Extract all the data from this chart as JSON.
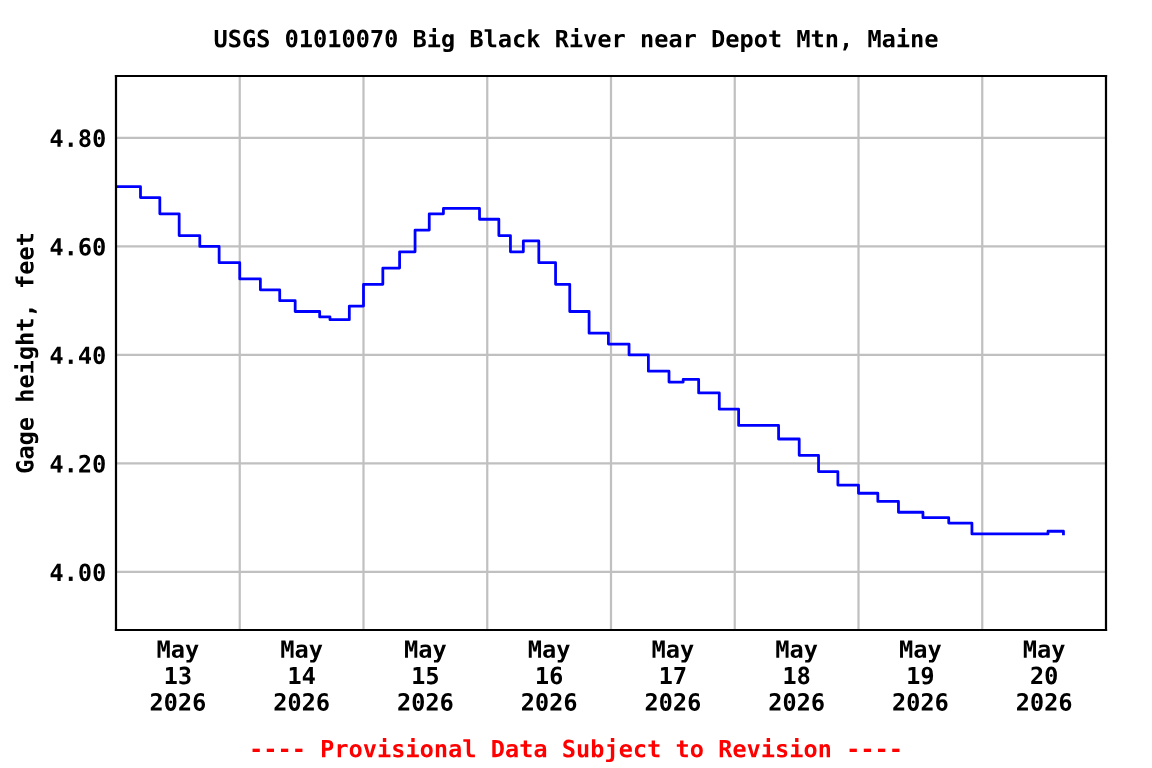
{
  "chart_data": {
    "type": "step",
    "title": "USGS 01010070 Big Black River near Depot Mtn, Maine",
    "ylabel": "Gage height, feet",
    "x": [
      "2026-05-12T12:00",
      "2026-05-12T16:45",
      "2026-05-12T20:30",
      "2026-05-13T00:15",
      "2026-05-13T04:15",
      "2026-05-13T08:00",
      "2026-05-13T12:00",
      "2026-05-13T16:00",
      "2026-05-13T19:45",
      "2026-05-13T22:45",
      "2026-05-14T03:30",
      "2026-05-14T05:30",
      "2026-05-14T09:15",
      "2026-05-14T12:00",
      "2026-05-14T15:45",
      "2026-05-14T19:00",
      "2026-05-14T22:00",
      "2026-05-15T00:45",
      "2026-05-15T03:30",
      "2026-05-15T06:30",
      "2026-05-15T10:30",
      "2026-05-15T14:15",
      "2026-05-15T16:30",
      "2026-05-15T19:00",
      "2026-05-15T22:00",
      "2026-05-16T01:15",
      "2026-05-16T04:00",
      "2026-05-16T07:45",
      "2026-05-16T11:30",
      "2026-05-16T15:30",
      "2026-05-16T19:15",
      "2026-05-16T23:15",
      "2026-05-17T02:00",
      "2026-05-17T05:00",
      "2026-05-17T09:00",
      "2026-05-17T12:45",
      "2026-05-17T17:30",
      "2026-05-17T20:30",
      "2026-05-18T00:30",
      "2026-05-18T04:15",
      "2026-05-18T08:00",
      "2026-05-18T12:00",
      "2026-05-18T15:45",
      "2026-05-18T19:45",
      "2026-05-19T00:30",
      "2026-05-19T05:30",
      "2026-05-19T10:00",
      "2026-05-19T15:00",
      "2026-05-19T21:00",
      "2026-05-20T00:45",
      "2026-05-20T03:45"
    ],
    "series": [
      {
        "color": "#0000ff",
        "values": [
          4.71,
          4.69,
          4.66,
          4.62,
          4.6,
          4.57,
          4.54,
          4.52,
          4.5,
          4.48,
          4.47,
          4.465,
          4.49,
          4.53,
          4.56,
          4.59,
          4.63,
          4.66,
          4.67,
          4.67,
          4.65,
          4.62,
          4.59,
          4.61,
          4.57,
          4.53,
          4.48,
          4.44,
          4.42,
          4.4,
          4.37,
          4.35,
          4.355,
          4.33,
          4.3,
          4.27,
          4.27,
          4.245,
          4.215,
          4.185,
          4.16,
          4.145,
          4.13,
          4.11,
          4.1,
          4.09,
          4.07,
          4.07,
          4.07,
          4.075,
          4.07
        ]
      }
    ],
    "xlim": [
      "2026-05-12T12:00",
      "2026-05-20T12:00"
    ],
    "xticks": [
      {
        "value": "2026-05-13T00:00",
        "label": "May\n13\n2026"
      },
      {
        "value": "2026-05-13T12:00",
        "label": null
      },
      {
        "value": "2026-05-14T00:00",
        "label": "May\n14\n2026"
      },
      {
        "value": "2026-05-14T12:00",
        "label": null
      },
      {
        "value": "2026-05-15T00:00",
        "label": "May\n15\n2026"
      },
      {
        "value": "2026-05-15T12:00",
        "label": null
      },
      {
        "value": "2026-05-16T00:00",
        "label": "May\n16\n2026"
      },
      {
        "value": "2026-05-16T12:00",
        "label": null
      },
      {
        "value": "2026-05-17T00:00",
        "label": "May\n17\n2026"
      },
      {
        "value": "2026-05-17T12:00",
        "label": null
      },
      {
        "value": "2026-05-18T00:00",
        "label": "May\n18\n2026"
      },
      {
        "value": "2026-05-18T12:00",
        "label": null
      },
      {
        "value": "2026-05-19T00:00",
        "label": "May\n19\n2026"
      },
      {
        "value": "2026-05-19T12:00",
        "label": null
      },
      {
        "value": "2026-05-20T00:00",
        "label": "May\n20\n2026"
      }
    ],
    "ylim": [
      3.893,
      4.914
    ],
    "yticks": [
      {
        "value": 4.0,
        "label": "4.00"
      },
      {
        "value": 4.2,
        "label": "4.20"
      },
      {
        "value": 4.4,
        "label": "4.40"
      },
      {
        "value": 4.6,
        "label": "4.60"
      },
      {
        "value": 4.8,
        "label": "4.80"
      }
    ],
    "grid": true,
    "annotations": [
      "---- Provisional Data Subject to Revision ----"
    ]
  }
}
